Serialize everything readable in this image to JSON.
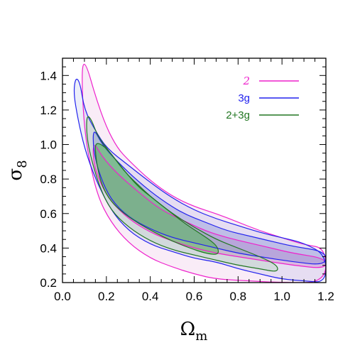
{
  "chart_data": {
    "type": "contour",
    "xlabel": "Ωm",
    "xlabel_main": "Ω",
    "xlabel_sub": "m",
    "ylabel": "σ8",
    "ylabel_main": "σ",
    "ylabel_sub": "8",
    "xlim": [
      0.0,
      1.2
    ],
    "ylim": [
      0.2,
      1.5
    ],
    "xticks": [
      0.0,
      0.2,
      0.4,
      0.6,
      0.8,
      1.0,
      1.2
    ],
    "xtick_labels": [
      "0.0",
      "0.2",
      "0.4",
      "0.6",
      "0.8",
      "1.0",
      "1.2"
    ],
    "yticks": [
      0.2,
      0.4,
      0.6,
      0.8,
      1.0,
      1.2,
      1.4
    ],
    "ytick_labels": [
      "0.2",
      "0.4",
      "0.6",
      "0.8",
      "1.0",
      "1.2",
      "1.4"
    ],
    "grid": false,
    "legend_position": "top-right",
    "series": [
      {
        "name": "2",
        "color": "#ee22cc",
        "fill": "#cc66bb",
        "outer": {
          "upper": [
            [
              0.09,
              1.47
            ],
            [
              0.11,
              1.46
            ],
            [
              0.15,
              1.28
            ],
            [
              0.2,
              1.1
            ],
            [
              0.25,
              0.98
            ],
            [
              0.3,
              0.91
            ],
            [
              0.4,
              0.79
            ],
            [
              0.5,
              0.7
            ],
            [
              0.6,
              0.64
            ],
            [
              0.7,
              0.6
            ],
            [
              0.8,
              0.55
            ],
            [
              0.9,
              0.5
            ],
            [
              1.0,
              0.46
            ],
            [
              1.1,
              0.42
            ],
            [
              1.2,
              0.4
            ]
          ],
          "lower": [
            [
              1.2,
              0.2
            ],
            [
              1.0,
              0.2
            ],
            [
              0.85,
              0.21
            ],
            [
              0.7,
              0.22
            ],
            [
              0.6,
              0.25
            ],
            [
              0.5,
              0.29
            ],
            [
              0.4,
              0.34
            ],
            [
              0.3,
              0.43
            ],
            [
              0.22,
              0.55
            ],
            [
              0.16,
              0.7
            ],
            [
              0.12,
              0.92
            ],
            [
              0.1,
              1.1
            ],
            [
              0.09,
              1.3
            ]
          ]
        },
        "inner": {
          "upper": [
            [
              0.14,
              1.02
            ],
            [
              0.18,
              0.93
            ],
            [
              0.25,
              0.83
            ],
            [
              0.35,
              0.72
            ],
            [
              0.45,
              0.62
            ],
            [
              0.55,
              0.56
            ],
            [
              0.65,
              0.5
            ],
            [
              0.75,
              0.46
            ],
            [
              0.85,
              0.43
            ],
            [
              0.95,
              0.4
            ],
            [
              1.05,
              0.37
            ],
            [
              1.2,
              0.34
            ]
          ],
          "lower": [
            [
              1.2,
              0.28
            ],
            [
              1.05,
              0.3
            ],
            [
              0.9,
              0.33
            ],
            [
              0.8,
              0.35
            ],
            [
              0.7,
              0.37
            ],
            [
              0.6,
              0.4
            ],
            [
              0.5,
              0.44
            ],
            [
              0.4,
              0.49
            ],
            [
              0.3,
              0.57
            ],
            [
              0.22,
              0.67
            ],
            [
              0.17,
              0.78
            ],
            [
              0.14,
              0.9
            ]
          ]
        }
      },
      {
        "name": "3g",
        "color": "#2222ee",
        "fill": "#6677cc",
        "outer": {
          "upper": [
            [
              0.06,
              1.39
            ],
            [
              0.08,
              1.36
            ],
            [
              0.1,
              1.2
            ],
            [
              0.15,
              1.08
            ],
            [
              0.2,
              0.98
            ],
            [
              0.3,
              0.88
            ],
            [
              0.4,
              0.78
            ],
            [
              0.5,
              0.69
            ],
            [
              0.6,
              0.62
            ],
            [
              0.7,
              0.57
            ],
            [
              0.8,
              0.53
            ],
            [
              0.9,
              0.49
            ],
            [
              1.0,
              0.46
            ],
            [
              1.1,
              0.43
            ],
            [
              1.2,
              0.36
            ]
          ],
          "lower": [
            [
              1.2,
              0.2
            ],
            [
              1.1,
              0.21
            ],
            [
              1.0,
              0.22
            ],
            [
              0.9,
              0.25
            ],
            [
              0.8,
              0.28
            ],
            [
              0.7,
              0.32
            ],
            [
              0.6,
              0.34
            ],
            [
              0.5,
              0.38
            ],
            [
              0.4,
              0.42
            ],
            [
              0.3,
              0.5
            ],
            [
              0.22,
              0.62
            ],
            [
              0.15,
              0.8
            ],
            [
              0.1,
              0.98
            ],
            [
              0.07,
              1.15
            ],
            [
              0.05,
              1.3
            ]
          ]
        },
        "inner": {
          "upper": [
            [
              0.14,
              1.1
            ],
            [
              0.18,
              1.0
            ],
            [
              0.25,
              0.9
            ],
            [
              0.35,
              0.78
            ],
            [
              0.45,
              0.68
            ],
            [
              0.55,
              0.6
            ],
            [
              0.65,
              0.55
            ],
            [
              0.75,
              0.5
            ],
            [
              0.85,
              0.47
            ],
            [
              0.95,
              0.44
            ],
            [
              1.05,
              0.41
            ],
            [
              1.2,
              0.38
            ]
          ],
          "lower": [
            [
              1.2,
              0.3
            ],
            [
              1.05,
              0.32
            ],
            [
              0.9,
              0.35
            ],
            [
              0.8,
              0.37
            ],
            [
              0.7,
              0.4
            ],
            [
              0.6,
              0.43
            ],
            [
              0.5,
              0.46
            ],
            [
              0.4,
              0.51
            ],
            [
              0.3,
              0.58
            ],
            [
              0.22,
              0.68
            ],
            [
              0.17,
              0.82
            ],
            [
              0.14,
              0.97
            ]
          ]
        }
      },
      {
        "name": "2+3g",
        "color": "#227722",
        "fill": "#44bb44",
        "outer": {
          "upper": [
            [
              0.11,
              1.17
            ],
            [
              0.13,
              1.15
            ],
            [
              0.16,
              1.05
            ],
            [
              0.2,
              0.98
            ],
            [
              0.25,
              0.9
            ],
            [
              0.3,
              0.82
            ],
            [
              0.35,
              0.75
            ],
            [
              0.4,
              0.7
            ],
            [
              0.5,
              0.6
            ],
            [
              0.6,
              0.52
            ],
            [
              0.7,
              0.45
            ],
            [
              0.8,
              0.4
            ],
            [
              0.9,
              0.35
            ],
            [
              0.98,
              0.3
            ]
          ],
          "lower": [
            [
              0.98,
              0.26
            ],
            [
              0.9,
              0.28
            ],
            [
              0.8,
              0.3
            ],
            [
              0.7,
              0.33
            ],
            [
              0.6,
              0.36
            ],
            [
              0.5,
              0.39
            ],
            [
              0.4,
              0.44
            ],
            [
              0.3,
              0.52
            ],
            [
              0.22,
              0.62
            ],
            [
              0.17,
              0.75
            ],
            [
              0.13,
              0.92
            ],
            [
              0.11,
              1.05
            ]
          ]
        },
        "inner": {
          "upper": [
            [
              0.15,
              1.01
            ],
            [
              0.18,
              1.0
            ],
            [
              0.22,
              0.95
            ],
            [
              0.26,
              0.88
            ],
            [
              0.3,
              0.82
            ],
            [
              0.35,
              0.76
            ],
            [
              0.4,
              0.7
            ],
            [
              0.45,
              0.65
            ],
            [
              0.5,
              0.6
            ],
            [
              0.56,
              0.54
            ],
            [
              0.62,
              0.49
            ],
            [
              0.68,
              0.44
            ],
            [
              0.71,
              0.4
            ]
          ],
          "lower": [
            [
              0.71,
              0.36
            ],
            [
              0.65,
              0.37
            ],
            [
              0.58,
              0.4
            ],
            [
              0.5,
              0.44
            ],
            [
              0.42,
              0.49
            ],
            [
              0.35,
              0.54
            ],
            [
              0.28,
              0.6
            ],
            [
              0.22,
              0.67
            ],
            [
              0.18,
              0.76
            ],
            [
              0.16,
              0.86
            ],
            [
              0.15,
              0.95
            ]
          ]
        }
      }
    ]
  }
}
